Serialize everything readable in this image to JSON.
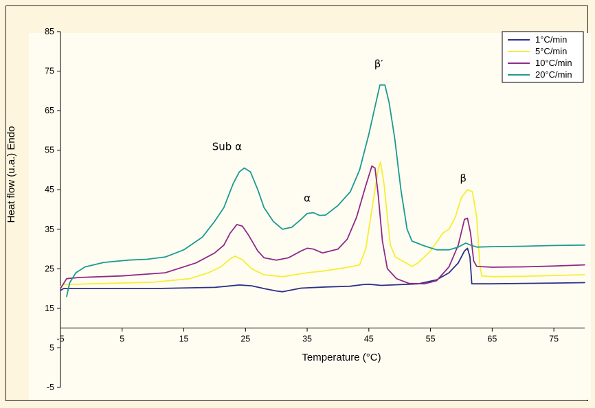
{
  "chart_data": {
    "type": "line",
    "title": "",
    "xlabel": "Temperature (°C)",
    "ylabel": "Heat flow (u.a.) Endo",
    "xlim": [
      -5,
      80
    ],
    "ylim": [
      -5,
      85
    ],
    "x_axis_crosses_y": 10,
    "x_ticks": [
      -5,
      5,
      15,
      25,
      35,
      45,
      55,
      65,
      75
    ],
    "x_tick_labels": [
      "-5",
      "5",
      "15",
      "25",
      "35",
      "45",
      "55",
      "65",
      "75"
    ],
    "y_ticks": [
      -5,
      5,
      15,
      25,
      35,
      45,
      55,
      65,
      75,
      85
    ],
    "y_tick_labels": [
      "-5",
      "5",
      "15",
      "25",
      "35",
      "45",
      "55",
      "65",
      "75",
      "85"
    ],
    "grid": false,
    "legend_position": "top-right",
    "series": [
      {
        "name": "1°C/min",
        "color": "#2b3087",
        "points": [
          [
            -5,
            19.5
          ],
          [
            -4.5,
            20
          ],
          [
            0,
            20
          ],
          [
            10,
            20
          ],
          [
            20,
            20.3
          ],
          [
            22,
            20.6
          ],
          [
            24,
            20.9
          ],
          [
            26,
            20.7
          ],
          [
            28,
            20
          ],
          [
            30,
            19.4
          ],
          [
            31,
            19.2
          ],
          [
            32,
            19.5
          ],
          [
            34,
            20.1
          ],
          [
            38,
            20.4
          ],
          [
            42,
            20.6
          ],
          [
            44,
            21
          ],
          [
            45,
            21.1
          ],
          [
            47,
            20.8
          ],
          [
            50,
            21
          ],
          [
            53,
            21.2
          ],
          [
            56,
            22.2
          ],
          [
            58,
            24
          ],
          [
            59.5,
            26.5
          ],
          [
            60.5,
            29.5
          ],
          [
            61,
            30.2
          ],
          [
            61.4,
            28
          ],
          [
            61.7,
            21.2
          ],
          [
            65,
            21.2
          ],
          [
            70,
            21.3
          ],
          [
            75,
            21.4
          ],
          [
            80,
            21.5
          ]
        ]
      },
      {
        "name": "5°C/min",
        "color": "#f4ef34",
        "points": [
          [
            -5,
            20.5
          ],
          [
            -4.5,
            21
          ],
          [
            0,
            21.2
          ],
          [
            10,
            21.6
          ],
          [
            16,
            22.5
          ],
          [
            19,
            24
          ],
          [
            21,
            25.5
          ],
          [
            22.5,
            27.5
          ],
          [
            23.3,
            28.2
          ],
          [
            24.5,
            27.3
          ],
          [
            26,
            25
          ],
          [
            28,
            23.5
          ],
          [
            31,
            23
          ],
          [
            33,
            23.5
          ],
          [
            35,
            24
          ],
          [
            38,
            24.5
          ],
          [
            40,
            25
          ],
          [
            42,
            25.5
          ],
          [
            43.5,
            26
          ],
          [
            44.5,
            30
          ],
          [
            45.5,
            40
          ],
          [
            46.5,
            50
          ],
          [
            46.9,
            52
          ],
          [
            47.5,
            46
          ],
          [
            48,
            38
          ],
          [
            48.5,
            31
          ],
          [
            49.3,
            28
          ],
          [
            51,
            26.5
          ],
          [
            52,
            25.6
          ],
          [
            53,
            26.5
          ],
          [
            55,
            29.5
          ],
          [
            57,
            34
          ],
          [
            58,
            35
          ],
          [
            59,
            38
          ],
          [
            60,
            43
          ],
          [
            61,
            45
          ],
          [
            61.8,
            44.5
          ],
          [
            62.5,
            38
          ],
          [
            63,
            26
          ],
          [
            63.3,
            23.2
          ],
          [
            65,
            23
          ],
          [
            70,
            23.1
          ],
          [
            75,
            23.3
          ],
          [
            80,
            23.5
          ]
        ]
      },
      {
        "name": "10°C/min",
        "color": "#8e2a88",
        "points": [
          [
            -5,
            20
          ],
          [
            -4,
            22.5
          ],
          [
            -2,
            22.8
          ],
          [
            5,
            23.2
          ],
          [
            12,
            24
          ],
          [
            17,
            26.5
          ],
          [
            20,
            29
          ],
          [
            21.5,
            31
          ],
          [
            22.5,
            34
          ],
          [
            23.6,
            36.2
          ],
          [
            24.5,
            35.8
          ],
          [
            25.5,
            33.5
          ],
          [
            27,
            29.5
          ],
          [
            28,
            27.8
          ],
          [
            30,
            27.2
          ],
          [
            32,
            27.8
          ],
          [
            34,
            29.5
          ],
          [
            35,
            30.2
          ],
          [
            36,
            30
          ],
          [
            37.5,
            29
          ],
          [
            40,
            30
          ],
          [
            41.5,
            32.5
          ],
          [
            43,
            38
          ],
          [
            44.5,
            46
          ],
          [
            45.5,
            51
          ],
          [
            46,
            50.5
          ],
          [
            46.5,
            44
          ],
          [
            47.2,
            32
          ],
          [
            48,
            25
          ],
          [
            49.5,
            22.5
          ],
          [
            51.5,
            21.3
          ],
          [
            54,
            21.2
          ],
          [
            56,
            22
          ],
          [
            58,
            25.5
          ],
          [
            59.5,
            31
          ],
          [
            60.5,
            37.5
          ],
          [
            61,
            37.8
          ],
          [
            61.5,
            34
          ],
          [
            62,
            27
          ],
          [
            62.5,
            25.6
          ],
          [
            65,
            25.4
          ],
          [
            70,
            25.5
          ],
          [
            75,
            25.7
          ],
          [
            80,
            26
          ]
        ]
      },
      {
        "name": "20°C/min",
        "color": "#1b9a91",
        "points": [
          [
            -4,
            18
          ],
          [
            -3.5,
            21.5
          ],
          [
            -2.5,
            24
          ],
          [
            -1,
            25.5
          ],
          [
            2,
            26.6
          ],
          [
            6,
            27.2
          ],
          [
            9,
            27.4
          ],
          [
            12,
            28
          ],
          [
            15,
            29.8
          ],
          [
            18,
            33
          ],
          [
            20,
            37
          ],
          [
            21.5,
            40.5
          ],
          [
            23,
            46.5
          ],
          [
            24,
            49.5
          ],
          [
            24.8,
            50.5
          ],
          [
            25.8,
            49.5
          ],
          [
            27,
            45
          ],
          [
            28,
            40.5
          ],
          [
            29.5,
            37
          ],
          [
            31,
            35
          ],
          [
            32.5,
            35.5
          ],
          [
            34,
            37.5
          ],
          [
            35,
            39
          ],
          [
            36,
            39.2
          ],
          [
            37,
            38.5
          ],
          [
            38,
            38.6
          ],
          [
            40,
            41
          ],
          [
            42,
            44.5
          ],
          [
            43.5,
            50
          ],
          [
            45,
            59
          ],
          [
            46,
            66
          ],
          [
            46.8,
            71.5
          ],
          [
            47.6,
            71.5
          ],
          [
            48.3,
            67
          ],
          [
            49.2,
            58
          ],
          [
            50.2,
            45
          ],
          [
            51.2,
            35
          ],
          [
            52,
            32
          ],
          [
            54,
            30.8
          ],
          [
            56,
            29.8
          ],
          [
            58,
            29.8
          ],
          [
            59.5,
            30.5
          ],
          [
            60.7,
            31.5
          ],
          [
            61.5,
            31
          ],
          [
            62.5,
            30.5
          ],
          [
            65,
            30.6
          ],
          [
            70,
            30.7
          ],
          [
            75,
            30.9
          ],
          [
            80,
            31
          ]
        ]
      }
    ],
    "annotations": [
      {
        "text": "Sub α",
        "x": 22,
        "y": 55
      },
      {
        "text": "α",
        "x": 35,
        "y": 42
      },
      {
        "text": "β′",
        "x": 46.6,
        "y": 76
      },
      {
        "text": "β",
        "x": 60.3,
        "y": 47
      }
    ]
  }
}
